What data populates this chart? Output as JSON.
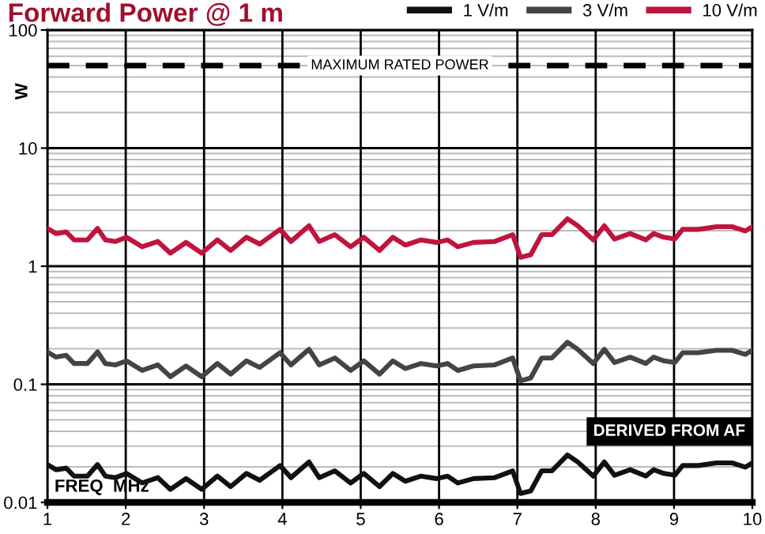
{
  "chart_data": {
    "type": "line",
    "title": "Forward Power @ 1 m",
    "xlabel": "FREQ  MHz",
    "ylabel": "W",
    "x": [
      1.0,
      1.11,
      1.24,
      1.34,
      1.51,
      1.64,
      1.74,
      1.87,
      2.01,
      2.21,
      2.41,
      2.57,
      2.77,
      2.97,
      3.17,
      3.34,
      3.54,
      3.71,
      3.97,
      4.11,
      4.34,
      4.47,
      4.67,
      4.87,
      5.04,
      5.24,
      5.41,
      5.57,
      5.77,
      5.97,
      6.11,
      6.24,
      6.44,
      6.71,
      6.94,
      7.04,
      7.17,
      7.31,
      7.44,
      7.64,
      7.77,
      7.97,
      8.11,
      8.24,
      8.44,
      8.64,
      8.74,
      8.87,
      9.01,
      9.11,
      9.31,
      9.54,
      9.74,
      9.91,
      10.0
    ],
    "series": [
      {
        "name": "1 V/m",
        "color": "#111111",
        "values": [
          0.0209,
          0.0189,
          0.0195,
          0.0167,
          0.0167,
          0.0209,
          0.0167,
          0.0162,
          0.0176,
          0.0146,
          0.0162,
          0.0129,
          0.0159,
          0.0129,
          0.0167,
          0.0136,
          0.0176,
          0.0154,
          0.0205,
          0.0162,
          0.022,
          0.0162,
          0.0185,
          0.0146,
          0.0176,
          0.0136,
          0.0176,
          0.0151,
          0.0167,
          0.0159,
          0.0167,
          0.0146,
          0.0159,
          0.0162,
          0.0185,
          0.0119,
          0.0125,
          0.0185,
          0.0185,
          0.0252,
          0.022,
          0.0167,
          0.022,
          0.017,
          0.0189,
          0.0167,
          0.0189,
          0.0176,
          0.017,
          0.0205,
          0.0205,
          0.0216,
          0.0216,
          0.0199,
          0.0216
        ]
      },
      {
        "name": "3 V/m",
        "color": "#444444",
        "values": [
          0.188,
          0.17,
          0.176,
          0.15,
          0.15,
          0.188,
          0.15,
          0.146,
          0.158,
          0.131,
          0.146,
          0.116,
          0.143,
          0.116,
          0.15,
          0.122,
          0.158,
          0.139,
          0.185,
          0.146,
          0.198,
          0.146,
          0.167,
          0.131,
          0.158,
          0.122,
          0.158,
          0.136,
          0.15,
          0.143,
          0.15,
          0.131,
          0.143,
          0.146,
          0.167,
          0.107,
          0.113,
          0.167,
          0.167,
          0.227,
          0.198,
          0.15,
          0.198,
          0.153,
          0.17,
          0.15,
          0.17,
          0.158,
          0.153,
          0.185,
          0.185,
          0.194,
          0.194,
          0.179,
          0.194
        ]
      },
      {
        "name": "10 V/m",
        "color": "#c0143c",
        "values": [
          2.09,
          1.89,
          1.95,
          1.67,
          1.67,
          2.09,
          1.67,
          1.62,
          1.76,
          1.46,
          1.62,
          1.29,
          1.59,
          1.29,
          1.67,
          1.36,
          1.76,
          1.54,
          2.05,
          1.62,
          2.2,
          1.62,
          1.85,
          1.46,
          1.76,
          1.36,
          1.76,
          1.51,
          1.67,
          1.59,
          1.67,
          1.46,
          1.59,
          1.62,
          1.85,
          1.19,
          1.25,
          1.85,
          1.85,
          2.52,
          2.2,
          1.67,
          2.2,
          1.7,
          1.89,
          1.67,
          1.89,
          1.76,
          1.7,
          2.05,
          2.05,
          2.16,
          2.16,
          1.99,
          2.16
        ]
      }
    ],
    "log": "y",
    "xlim": [
      1,
      10
    ],
    "ylim": [
      0.01,
      100
    ],
    "xticks": [
      1,
      2,
      3,
      4,
      5,
      6,
      7,
      8,
      9,
      10
    ],
    "yticks": [
      0.01,
      0.1,
      1,
      10,
      100
    ],
    "ref_lines": [
      {
        "axis": "y",
        "value": 50,
        "label": "MAXIMUM RATED POWER",
        "color": "#000000",
        "line_style": "dashed"
      }
    ],
    "annotations": [
      "DERIVED FROM AF"
    ],
    "grid": true,
    "legend": "top right",
    "line_style": "solid",
    "marker": "none"
  }
}
